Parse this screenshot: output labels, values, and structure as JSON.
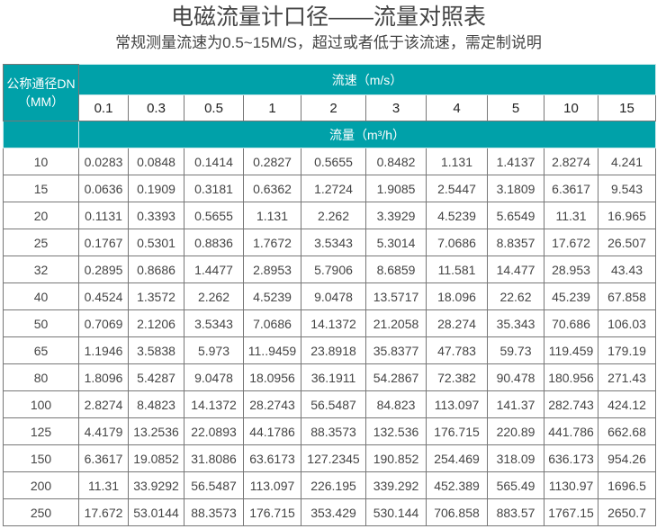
{
  "title": "电磁流量计口径——流量对照表",
  "subtitle": "常规测量流速为0.5~15M/S，超过或者低于该流速，需定制说明",
  "table": {
    "dn_header_line1": "公称通径DN",
    "dn_header_line2": "（MM）",
    "speed_header": "流速（m/s）",
    "speeds": [
      "0.1",
      "0.3",
      "0.5",
      "1",
      "2",
      "3",
      "4",
      "5",
      "10",
      "15"
    ],
    "flow_header": "流量（m³/h）",
    "header_color": "#00a1a9",
    "rows": [
      [
        "10",
        "0.0283",
        "0.0848",
        "0.1414",
        "0.2827",
        "0.5655",
        "0.8482",
        "1.131",
        "1.4137",
        "2.8274",
        "4.241"
      ],
      [
        "15",
        "0.0636",
        "0.1909",
        "0.3181",
        "0.6362",
        "1.2724",
        "1.9085",
        "2.5447",
        "3.1809",
        "6.3617",
        "9.543"
      ],
      [
        "20",
        "0.1131",
        "0.3393",
        "0.5655",
        "1.131",
        "2.262",
        "3.3929",
        "4.5239",
        "5.6549",
        "11.31",
        "16.965"
      ],
      [
        "25",
        "0.1767",
        "0.5301",
        "0.8836",
        "1.7672",
        "3.5343",
        "5.3014",
        "7.0686",
        "8.8357",
        "17.672",
        "26.507"
      ],
      [
        "32",
        "0.2895",
        "0.8686",
        "1.4477",
        "2.8953",
        "5.7906",
        "8.6859",
        "11.581",
        "14.477",
        "28.953",
        "43.43"
      ],
      [
        "40",
        "0.4524",
        "1.3572",
        "2.262",
        "4.5239",
        "9.0478",
        "13.5717",
        "18.096",
        "22.62",
        "45.239",
        "67.858"
      ],
      [
        "50",
        "0.7069",
        "2.1206",
        "3.5343",
        "7.0686",
        "14.1372",
        "21.2058",
        "28.274",
        "35.343",
        "70.686",
        "106.03"
      ],
      [
        "65",
        "1.1946",
        "3.5838",
        "5.973",
        "11..9459",
        "23.8918",
        "35.8377",
        "47.783",
        "59.73",
        "119.459",
        "179.19"
      ],
      [
        "80",
        "1.8096",
        "5.4287",
        "9.0478",
        "18.0956",
        "36.1911",
        "54.2867",
        "72.382",
        "90.478",
        "180.956",
        "271.43"
      ],
      [
        "100",
        "2.8274",
        "8.4823",
        "14.1372",
        "28.2743",
        "56.5487",
        "84.823",
        "113.097",
        "141.37",
        "282.743",
        "424.12"
      ],
      [
        "125",
        "4.4179",
        "13.2536",
        "22.0893",
        "44.1786",
        "88.3573",
        "132.536",
        "176.715",
        "220.89",
        "441.786",
        "662.68"
      ],
      [
        "150",
        "6.3617",
        "19.0852",
        "31.8086",
        "63.6173",
        "127.2345",
        "190.852",
        "254.469",
        "318.09",
        "636.173",
        "954.26"
      ],
      [
        "200",
        "11.31",
        "33.9292",
        "56.5487",
        "113.097",
        "226.195",
        "339.292",
        "452.389",
        "565.49",
        "1130.97",
        "1696.5"
      ],
      [
        "250",
        "17.672",
        "53.0144",
        "88.3573",
        "176.715",
        "353.429",
        "530.144",
        "706.858",
        "883.57",
        "1767.15",
        "2650.7"
      ]
    ]
  }
}
